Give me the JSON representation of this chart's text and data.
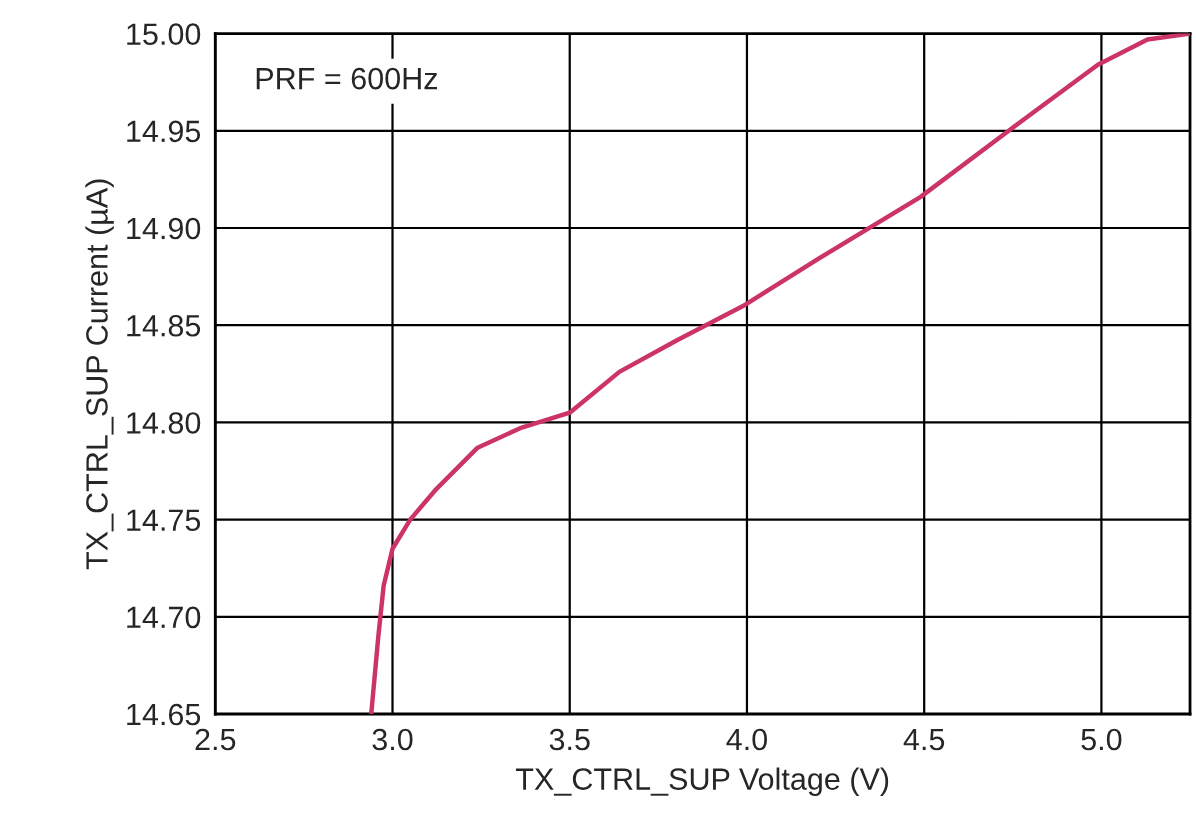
{
  "chart_data": {
    "type": "line",
    "xlabel": "TX_CTRL_SUP Voltage (V)",
    "ylabel": "TX_CTRL_SUP Current (µA)",
    "annotations": [
      "PRF = 600Hz"
    ],
    "x": [
      2.94,
      2.96,
      2.975,
      3.0,
      3.05,
      3.12,
      3.24,
      3.36,
      3.5,
      3.64,
      3.8,
      3.99,
      4.2,
      4.49,
      4.76,
      4.99,
      5.13,
      5.25
    ],
    "series": [
      {
        "color": "#cc3366",
        "values": [
          14.65,
          14.69,
          14.716,
          14.735,
          14.75,
          14.765,
          14.787,
          14.797,
          14.805,
          14.826,
          14.842,
          14.86,
          14.884,
          14.916,
          14.953,
          14.984,
          14.997,
          15.0
        ]
      }
    ],
    "xlim": [
      2.5,
      5.25
    ],
    "xticks": [
      2.5,
      {
        "value": 3,
        "label": "3.0"
      },
      3.5,
      {
        "value": 4,
        "label": "4.0"
      },
      4.5,
      {
        "value": 5,
        "label": "5.0"
      }
    ],
    "ylim": [
      14.65,
      15.0
    ],
    "yticks": [
      14.65,
      {
        "value": 14.7,
        "label": "14.70"
      },
      14.75,
      {
        "value": 14.8,
        "label": "14.80"
      },
      14.85,
      {
        "value": 14.9,
        "label": "14.90"
      },
      14.95,
      {
        "value": 15,
        "label": "15.00"
      }
    ],
    "grid": true,
    "legend": false,
    "line_style": "solid",
    "marker": "none"
  }
}
